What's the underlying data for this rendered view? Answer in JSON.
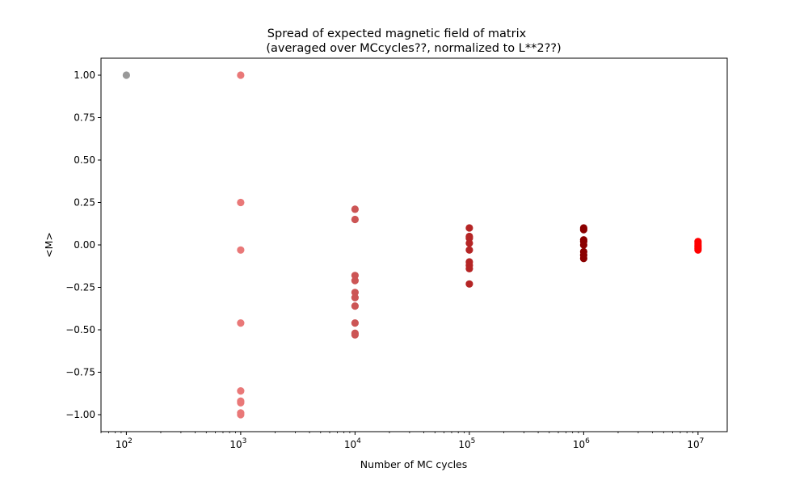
{
  "chart_data": {
    "type": "scatter",
    "title_line1": "Spread of expected magnetic field of matrix",
    "title_line2": "(averaged over MCcycles??, normalized to L**2??)",
    "xlabel": "Number of MC cycles",
    "ylabel": "<M>",
    "xscale": "log",
    "xlim": [
      60,
      18000000
    ],
    "ylim": [
      -1.1,
      1.1
    ],
    "grid": false,
    "legend": "none",
    "x_ticks": [
      {
        "value": 100,
        "label_base": "10",
        "label_exp": "2"
      },
      {
        "value": 1000,
        "label_base": "10",
        "label_exp": "3"
      },
      {
        "value": 10000,
        "label_base": "10",
        "label_exp": "4"
      },
      {
        "value": 100000,
        "label_base": "10",
        "label_exp": "5"
      },
      {
        "value": 1000000,
        "label_base": "10",
        "label_exp": "6"
      },
      {
        "value": 10000000,
        "label_base": "10",
        "label_exp": "7"
      }
    ],
    "y_ticks": [
      {
        "value": 1.0,
        "label": "1.00"
      },
      {
        "value": 0.75,
        "label": "0.75"
      },
      {
        "value": 0.5,
        "label": "0.50"
      },
      {
        "value": 0.25,
        "label": "0.25"
      },
      {
        "value": 0.0,
        "label": "0.00"
      },
      {
        "value": -0.25,
        "label": "−0.25"
      },
      {
        "value": -0.5,
        "label": "−0.50"
      },
      {
        "value": -0.75,
        "label": "−0.75"
      },
      {
        "value": -1.0,
        "label": "−1.00"
      }
    ],
    "series": [
      {
        "x": 100,
        "color": "#999999",
        "values": [
          1.0
        ]
      },
      {
        "x": 1000,
        "color": "#e97878",
        "values": [
          1.0,
          0.25,
          -0.03,
          -0.46,
          -0.86,
          -0.93,
          -0.92,
          -1.0,
          -0.99
        ]
      },
      {
        "x": 10000,
        "color": "#cc5555",
        "values": [
          0.21,
          0.15,
          -0.18,
          -0.21,
          -0.28,
          -0.31,
          -0.36,
          -0.46,
          -0.52,
          -0.53
        ]
      },
      {
        "x": 100000,
        "color": "#b52525",
        "values": [
          0.1,
          0.05,
          0.04,
          0.01,
          -0.03,
          -0.1,
          -0.12,
          -0.14,
          -0.23
        ]
      },
      {
        "x": 1000000,
        "color": "#8b0000",
        "values": [
          0.1,
          0.09,
          0.03,
          0.02,
          0.0,
          -0.04,
          -0.06,
          -0.08
        ]
      },
      {
        "x": 10000000,
        "color": "#ff0000",
        "values": [
          0.02,
          0.01,
          0.0,
          -0.01,
          -0.02,
          -0.03
        ]
      }
    ]
  }
}
